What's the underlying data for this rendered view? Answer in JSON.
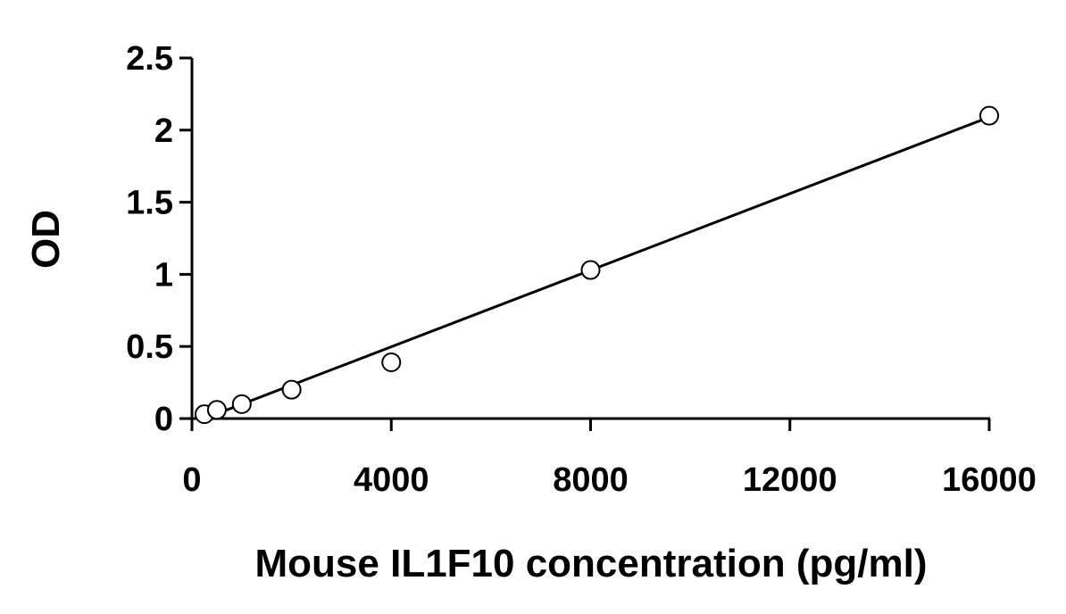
{
  "chart_data": {
    "type": "scatter",
    "title": "",
    "xlabel": "Mouse IL1F10 concentration (pg/ml)",
    "ylabel": "OD",
    "xlim": [
      0,
      16000
    ],
    "ylim": [
      0,
      2.5
    ],
    "x_ticks": [
      "0",
      "4000",
      "8000",
      "12000",
      "16000"
    ],
    "y_ticks": [
      "0",
      "0.5",
      "1",
      "1.5",
      "2",
      "2.5"
    ],
    "grid": false,
    "legend": "none",
    "series": [
      {
        "marker": "open-circle",
        "x": [
          250,
          500,
          1000,
          2000,
          4000,
          8000,
          16000
        ],
        "y": [
          0.03,
          0.06,
          0.1,
          0.2,
          0.39,
          1.03,
          2.1
        ]
      }
    ],
    "fit_line": {
      "type": "linear",
      "x": [
        250,
        16000
      ],
      "y": [
        0.0,
        2.09
      ]
    },
    "colors": {
      "axis": "#000000",
      "marker_stroke": "#000000",
      "marker_fill": "#ffffff",
      "line": "#000000"
    }
  }
}
